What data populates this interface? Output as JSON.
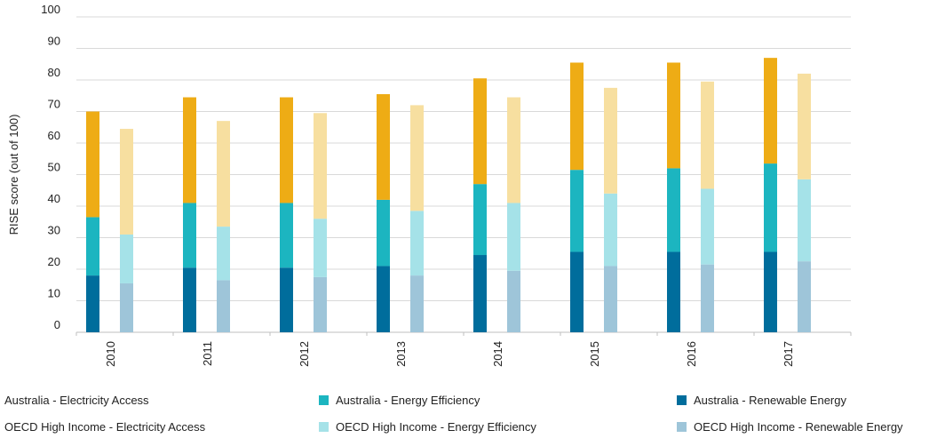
{
  "chart_data": {
    "type": "bar",
    "stacked": true,
    "title": "",
    "xlabel": "",
    "ylabel": "RISE score (out of 100)",
    "ylim": [
      0,
      100
    ],
    "yticks": [
      0,
      10,
      20,
      30,
      40,
      50,
      60,
      70,
      80,
      90,
      100
    ],
    "categories": [
      "2010",
      "2011",
      "2012",
      "2013",
      "2014",
      "2015",
      "2016",
      "2017"
    ],
    "grid": true,
    "legend_position": "bottom",
    "groups": [
      {
        "name": "Australia",
        "series": [
          {
            "name": "Australia - Renewable Energy",
            "color": "#006d9c",
            "values": [
              18,
              20.5,
              20.5,
              21,
              24.5,
              25.5,
              25.5,
              25.5
            ]
          },
          {
            "name": "Australia -  Energy Efficiency",
            "color": "#1cb5c0",
            "values": [
              18.5,
              20.5,
              20.5,
              21,
              22.5,
              26,
              26.5,
              28
            ]
          },
          {
            "name": "Australia - Electricity Access",
            "color": "#eeac15",
            "values": [
              33.5,
              33.5,
              33.5,
              33.5,
              33.5,
              34,
              33.5,
              33.5
            ]
          }
        ]
      },
      {
        "name": "OECD High Income",
        "series": [
          {
            "name": "OECD High Income - Renewable Energy",
            "color": "#9ec5d9",
            "values": [
              15.5,
              16.5,
              17.5,
              18,
              19.5,
              21,
              21.5,
              22.5
            ]
          },
          {
            "name": "OECD High Income - Energy Efficiency",
            "color": "#a5e2e8",
            "values": [
              15.5,
              17,
              18.5,
              20.5,
              21.5,
              23,
              24,
              26
            ]
          },
          {
            "name": "OECD High Income - Electricity Access",
            "color": "#f7dfa0",
            "values": [
              33.5,
              33.5,
              33.5,
              33.5,
              33.5,
              33.5,
              34,
              33.5
            ]
          }
        ]
      }
    ],
    "legend": [
      {
        "label": "Australia - Electricity Access",
        "color": "#eeac15"
      },
      {
        "label": "Australia -  Energy Efficiency",
        "color": "#1cb5c0"
      },
      {
        "label": "Australia - Renewable Energy",
        "color": "#006d9c"
      },
      {
        "label": "OECD High Income - Electricity Access",
        "color": "#f7dfa0"
      },
      {
        "label": "OECD High Income - Energy Efficiency",
        "color": "#a5e2e8"
      },
      {
        "label": "OECD High Income - Renewable Energy",
        "color": "#9ec5d9"
      }
    ],
    "colors": {
      "grid": "#d9d9d9",
      "axis": "#bfbfbf"
    }
  }
}
